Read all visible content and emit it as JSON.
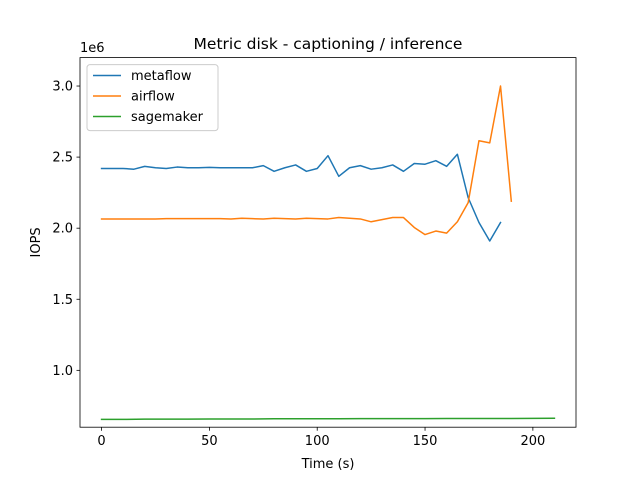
{
  "chart_data": {
    "type": "line",
    "title": "Metric disk - captioning / inference",
    "xlabel": "Time (s)",
    "ylabel": "IOPS",
    "y_offset_label": "1e6",
    "xlim": [
      -10,
      220
    ],
    "ylim": [
      0.6,
      3.2
    ],
    "y_scale_factor": 1000000,
    "xticks": [
      0,
      50,
      100,
      150,
      200
    ],
    "yticks": [
      1.0,
      1.5,
      2.0,
      2.5,
      3.0
    ],
    "xtick_labels": [
      "0",
      "50",
      "100",
      "150",
      "200"
    ],
    "ytick_labels": [
      "1.0",
      "1.5",
      "2.0",
      "2.5",
      "3.0"
    ],
    "grid": false,
    "legend_position": "top-left",
    "series": [
      {
        "name": "metaflow",
        "color": "#1f77b4",
        "x": [
          0,
          5,
          10,
          15,
          20,
          25,
          30,
          35,
          40,
          45,
          50,
          55,
          60,
          65,
          70,
          75,
          80,
          85,
          90,
          95,
          100,
          105,
          110,
          115,
          120,
          125,
          130,
          135,
          140,
          145,
          150,
          155,
          160,
          165,
          170,
          175,
          180,
          185
        ],
        "y": [
          2.42,
          2.42,
          2.42,
          2.415,
          2.435,
          2.425,
          2.42,
          2.43,
          2.425,
          2.425,
          2.428,
          2.425,
          2.425,
          2.425,
          2.425,
          2.44,
          2.4,
          2.425,
          2.445,
          2.4,
          2.42,
          2.51,
          2.365,
          2.425,
          2.44,
          2.415,
          2.425,
          2.445,
          2.4,
          2.455,
          2.45,
          2.475,
          2.435,
          2.52,
          2.215,
          2.04,
          1.91,
          2.04
        ]
      },
      {
        "name": "airflow",
        "color": "#ff7f0e",
        "x": [
          0,
          5,
          10,
          15,
          20,
          25,
          30,
          35,
          40,
          45,
          50,
          55,
          60,
          65,
          70,
          75,
          80,
          85,
          90,
          95,
          100,
          105,
          110,
          115,
          120,
          125,
          130,
          135,
          140,
          145,
          150,
          155,
          160,
          165,
          170,
          175,
          180,
          185,
          190
        ],
        "y": [
          2.065,
          2.065,
          2.065,
          2.065,
          2.065,
          2.065,
          2.067,
          2.067,
          2.067,
          2.067,
          2.067,
          2.067,
          2.065,
          2.07,
          2.067,
          2.065,
          2.07,
          2.067,
          2.065,
          2.07,
          2.067,
          2.065,
          2.075,
          2.07,
          2.065,
          2.045,
          2.06,
          2.075,
          2.075,
          2.005,
          1.955,
          1.98,
          1.965,
          2.045,
          2.18,
          2.615,
          2.6,
          3.0,
          2.19
        ]
      },
      {
        "name": "sagemaker",
        "color": "#2ca02c",
        "x": [
          0,
          10,
          20,
          30,
          40,
          50,
          60,
          70,
          80,
          90,
          100,
          110,
          120,
          130,
          140,
          150,
          160,
          170,
          180,
          190,
          200,
          210
        ],
        "y": [
          0.655,
          0.655,
          0.657,
          0.657,
          0.657,
          0.658,
          0.658,
          0.658,
          0.659,
          0.659,
          0.659,
          0.659,
          0.66,
          0.66,
          0.66,
          0.66,
          0.661,
          0.661,
          0.661,
          0.661,
          0.662,
          0.663
        ]
      }
    ]
  }
}
